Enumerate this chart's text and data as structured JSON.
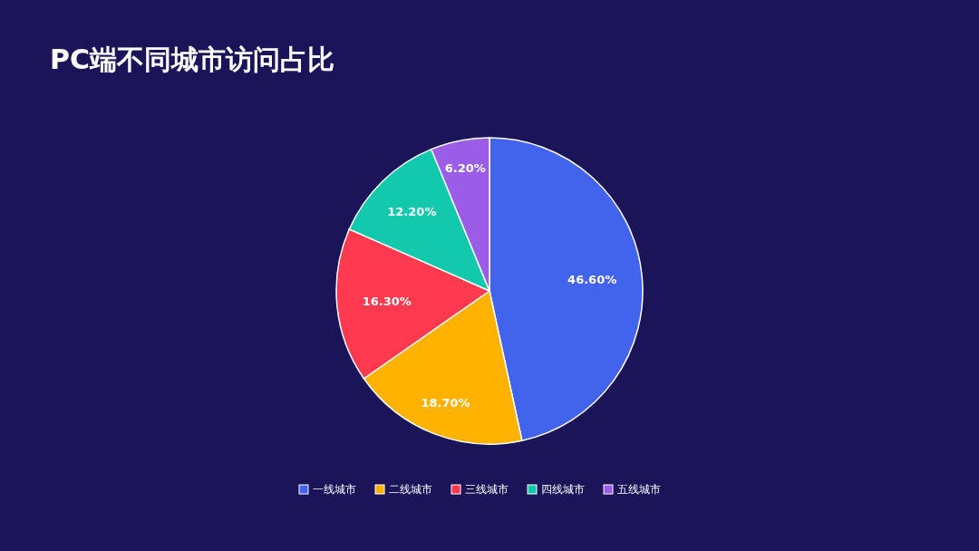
{
  "chart_data": {
    "type": "pie",
    "title": "PC端不同城市访问占比",
    "categories": [
      "一线城市",
      "二线城市",
      "三线城市",
      "四线城市",
      "五线城市"
    ],
    "values": [
      46.6,
      18.7,
      16.3,
      12.2,
      6.2
    ],
    "colors": [
      "#4263eb",
      "#ffb300",
      "#ff3a4f",
      "#12c9ad",
      "#9b5de5"
    ],
    "value_labels": [
      "46.60%",
      "18.70%",
      "16.30%",
      "12.20%",
      "6.20%"
    ],
    "legend": "bottom"
  }
}
